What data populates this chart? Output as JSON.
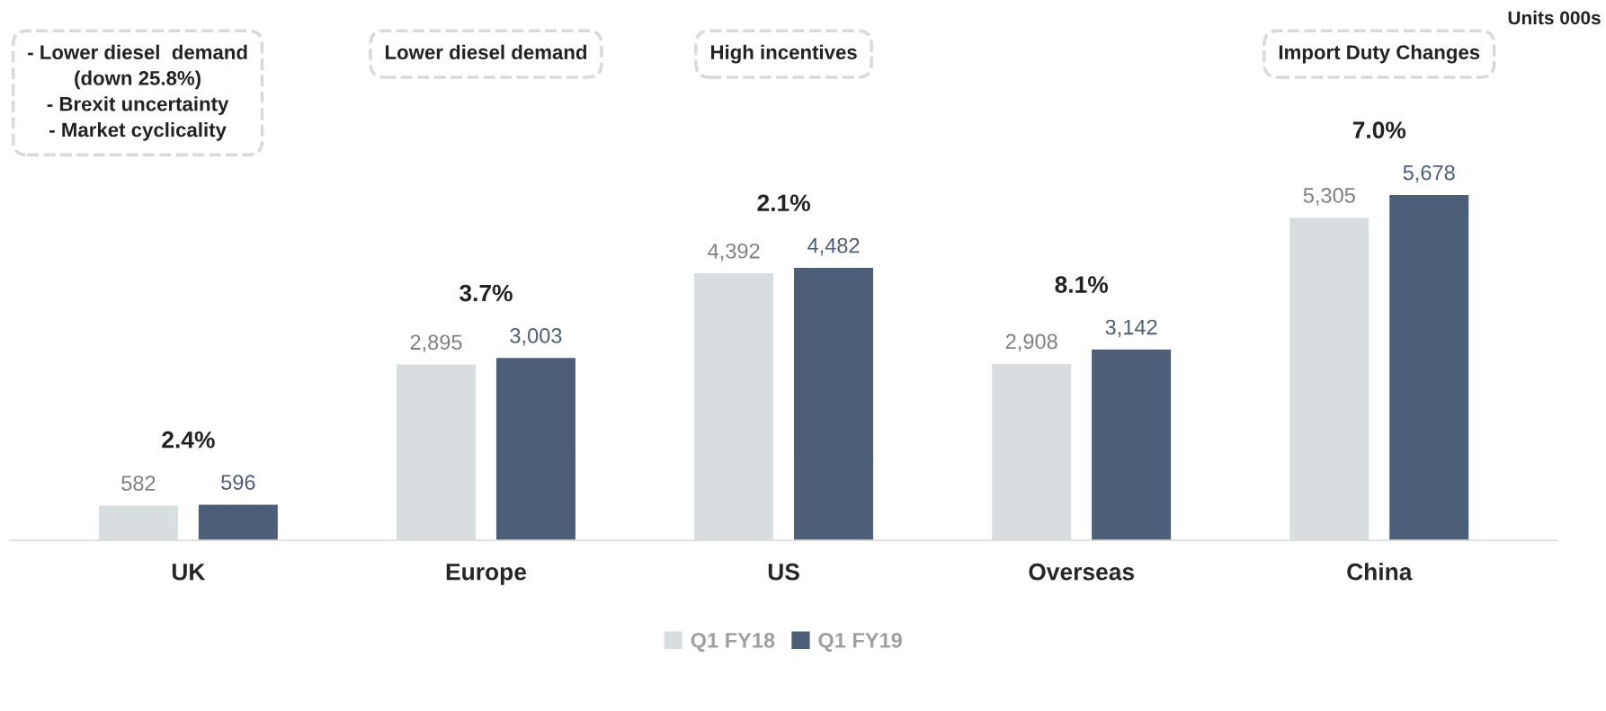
{
  "chart_data": {
    "type": "bar",
    "categories": [
      "UK",
      "Europe",
      "US",
      "Overseas",
      "China"
    ],
    "series": [
      {
        "name": "Q1 FY18",
        "color": "#d8dde0",
        "values": [
          582,
          2895,
          4392,
          2908,
          5305
        ],
        "value_labels": [
          "582",
          "2,895",
          "4,392",
          "2,908",
          "5,305"
        ]
      },
      {
        "name": "Q1 FY19",
        "color": "#4d5e78",
        "values": [
          596,
          3003,
          4482,
          3142,
          5678
        ],
        "value_labels": [
          "596",
          "3,003",
          "4,482",
          "3,142",
          "5,678"
        ]
      }
    ],
    "legend": "bottom",
    "grid": false,
    "tick_labels": "x",
    "annotations": [
      "2.4%",
      "3.7%",
      "2.1%",
      "8.1%",
      "7.0%",
      "- Lower diesel  demand\n(down 25.8%)\n- Brexit uncertainty\n- Market cyclicality",
      "Lower diesel demand",
      "High incentives",
      "Import Duty Changes",
      "Units 000s"
    ]
  }
}
